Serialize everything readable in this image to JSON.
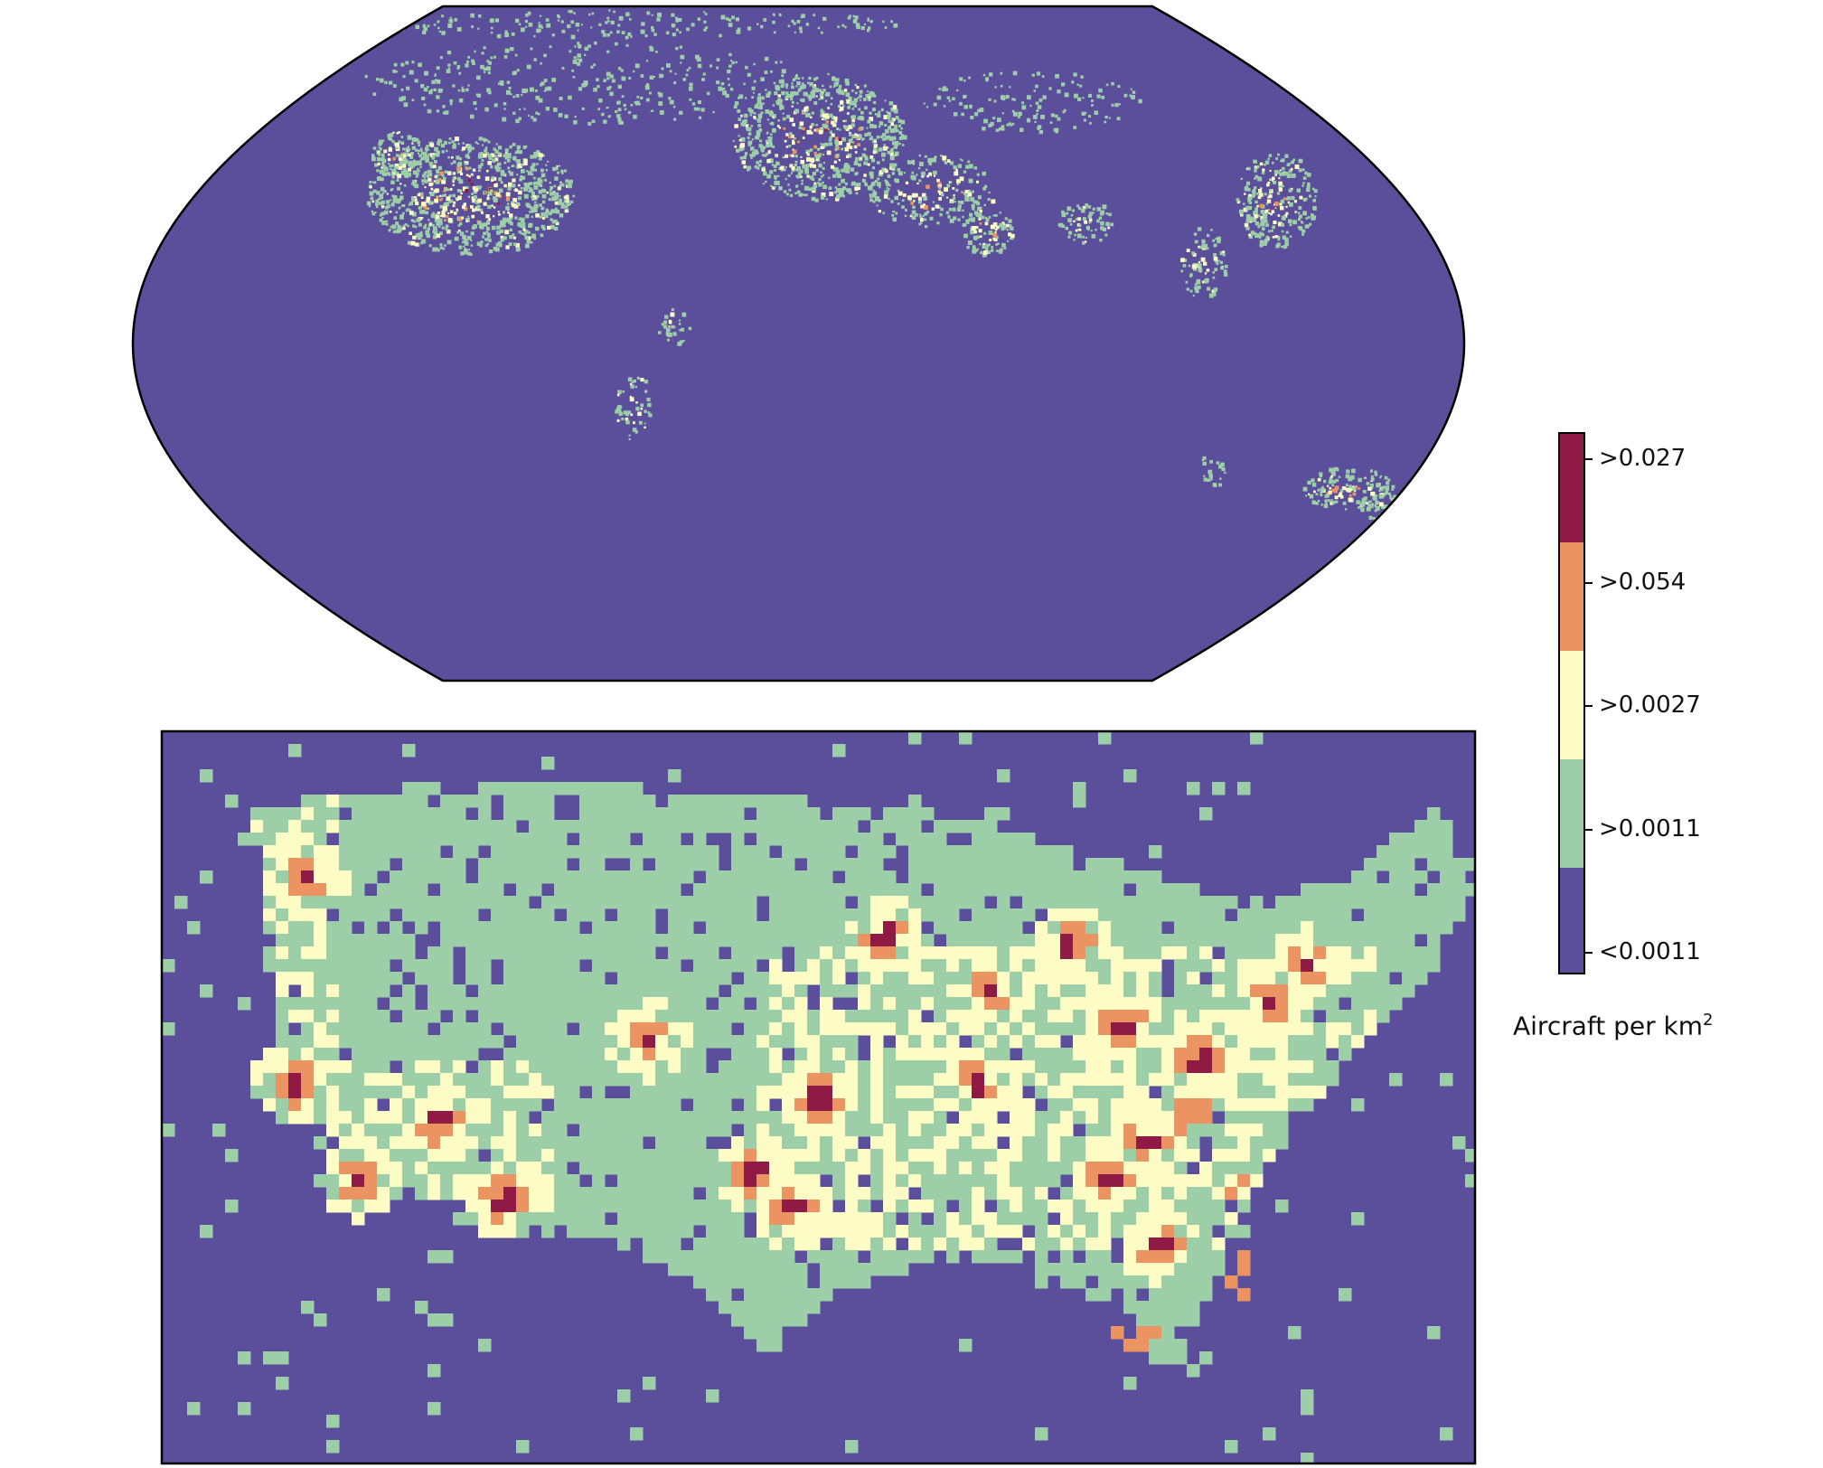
{
  "colors": {
    "lt_0_0011": "#5b4f9c",
    "gt_0_0011": "#9ccfa8",
    "gt_0_0027": "#fdfcc4",
    "gt_0_054": "#ec9461",
    "gt_0_027": "#8f1a45"
  },
  "legend": {
    "title": "Aircraft per km",
    "title_superscript": "2",
    "entries": [
      {
        "label": ">0.027",
        "color": "#8f1a45"
      },
      {
        "label": ">0.054",
        "color": "#ec9461"
      },
      {
        "label": ">0.0027",
        "color": "#fdfcc4"
      },
      {
        "label": ">0.0011",
        "color": "#9ccfa8"
      },
      {
        "label": "<0.0011",
        "color": "#5b4f9c"
      }
    ]
  },
  "maps": {
    "world": {
      "projection": "robinson",
      "background_class": "<0.0011"
    },
    "usa": {
      "projection": "plate-carree",
      "background_class": "<0.0011"
    }
  }
}
